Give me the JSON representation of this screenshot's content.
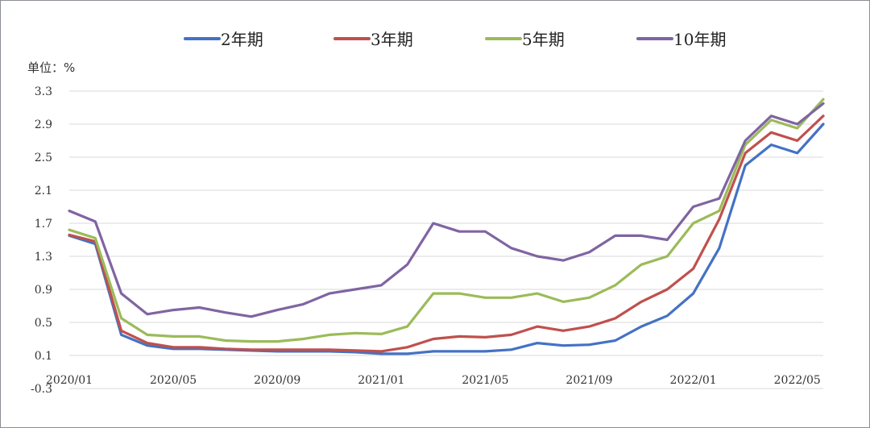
{
  "chart_data": {
    "type": "line",
    "title": "",
    "xlabel": "",
    "ylabel": "单位：%",
    "ylim": [
      -0.3,
      3.3
    ],
    "yticks": [
      "3.3",
      "2.9",
      "2.5",
      "2.1",
      "1.7",
      "1.3",
      "0.9",
      "0.5",
      "0.1",
      "-0.3"
    ],
    "x_ticks": [
      "2020/01",
      "2020/05",
      "2020/09",
      "2021/01",
      "2021/05",
      "2021/09",
      "2022/01",
      "2022/05"
    ],
    "x": [
      "2020/01",
      "2020/02",
      "2020/03",
      "2020/04",
      "2020/05",
      "2020/06",
      "2020/07",
      "2020/08",
      "2020/09",
      "2020/10",
      "2020/11",
      "2020/12",
      "2021/01",
      "2021/02",
      "2021/03",
      "2021/04",
      "2021/05",
      "2021/06",
      "2021/07",
      "2021/08",
      "2021/09",
      "2021/10",
      "2021/11",
      "2021/12",
      "2022/01",
      "2022/02",
      "2022/03",
      "2022/04",
      "2022/05",
      "2022/06"
    ],
    "grid": true,
    "legend_position": "top",
    "series": [
      {
        "name": "2年期",
        "color": "#4472C4",
        "values": [
          1.55,
          1.45,
          0.35,
          0.22,
          0.18,
          0.18,
          0.17,
          0.16,
          0.15,
          0.15,
          0.15,
          0.14,
          0.12,
          0.12,
          0.15,
          0.15,
          0.15,
          0.17,
          0.25,
          0.22,
          0.23,
          0.28,
          0.45,
          0.58,
          0.85,
          1.4,
          2.4,
          2.65,
          2.55,
          2.9
        ]
      },
      {
        "name": "3年期",
        "color": "#C0504D",
        "values": [
          1.56,
          1.48,
          0.4,
          0.25,
          0.2,
          0.2,
          0.18,
          0.17,
          0.17,
          0.17,
          0.17,
          0.16,
          0.15,
          0.2,
          0.3,
          0.33,
          0.32,
          0.35,
          0.45,
          0.4,
          0.45,
          0.55,
          0.75,
          0.9,
          1.15,
          1.75,
          2.55,
          2.8,
          2.7,
          3.0
        ]
      },
      {
        "name": "5年期",
        "color": "#9BBB59",
        "values": [
          1.62,
          1.52,
          0.55,
          0.35,
          0.33,
          0.33,
          0.28,
          0.27,
          0.27,
          0.3,
          0.35,
          0.37,
          0.36,
          0.45,
          0.85,
          0.85,
          0.8,
          0.8,
          0.85,
          0.75,
          0.8,
          0.95,
          1.2,
          1.3,
          1.7,
          1.85,
          2.65,
          2.95,
          2.85,
          3.2
        ]
      },
      {
        "name": "10年期",
        "color": "#8064A2",
        "values": [
          1.85,
          1.72,
          0.85,
          0.6,
          0.65,
          0.68,
          0.62,
          0.57,
          0.65,
          0.72,
          0.85,
          0.9,
          0.95,
          1.2,
          1.7,
          1.6,
          1.6,
          1.4,
          1.3,
          1.25,
          1.35,
          1.55,
          1.55,
          1.5,
          1.9,
          2.0,
          2.7,
          3.0,
          2.9,
          3.15
        ]
      }
    ]
  }
}
